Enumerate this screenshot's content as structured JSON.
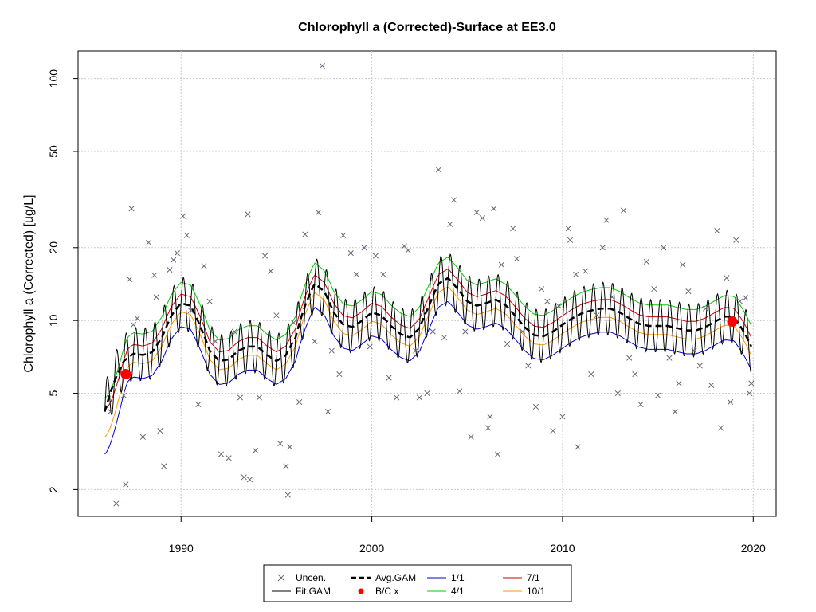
{
  "chart_data": {
    "type": "line",
    "title": "Chlorophyll a (Corrected)-Surface at EE3.0",
    "ylabel": "Chlorophyll a (Corrected) [ug/L]",
    "xlabel": "",
    "y_scale": "log",
    "xlim": [
      1984.6,
      2021.2
    ],
    "ylim": [
      1.55,
      130
    ],
    "x_ticks": [
      1990,
      2000,
      2010,
      2020
    ],
    "x_tick_labels": [
      "1990",
      "2000",
      "2010",
      "2020"
    ],
    "y_ticks": [
      2,
      5,
      10,
      20,
      50,
      100
    ],
    "y_tick_labels": [
      "2",
      "5",
      "10",
      "20",
      "50",
      "100"
    ],
    "grid": true,
    "legend_position": "bottom",
    "legend": [
      {
        "label": "Uncen.",
        "symbol": "x",
        "color": "#666677"
      },
      {
        "label": "Fit.GAM",
        "symbol": "line",
        "color": "#000000"
      },
      {
        "label": "Avg.GAM",
        "symbol": "dashed",
        "color": "#000000"
      },
      {
        "label": "B/C x",
        "symbol": "dot",
        "color": "#ff0000"
      },
      {
        "label": "1/1",
        "symbol": "line",
        "color": "#0000cc"
      },
      {
        "label": "4/1",
        "symbol": "line",
        "color": "#00cc00"
      },
      {
        "label": "7/1",
        "symbol": "line",
        "color": "#cc0000"
      },
      {
        "label": "10/1",
        "symbol": "line",
        "color": "#ff9900"
      }
    ],
    "bc_points": [
      {
        "x": 1987.1,
        "y": 6.0
      },
      {
        "x": 2018.9,
        "y": 9.9
      }
    ],
    "avg_gam": {
      "x": [
        1986.0,
        1986.5,
        1987.0,
        1987.5,
        1988.0,
        1988.5,
        1989.0,
        1989.5,
        1990.0,
        1990.5,
        1991.0,
        1991.5,
        1992.0,
        1992.5,
        1993.0,
        1993.5,
        1994.0,
        1994.5,
        1995.0,
        1995.5,
        1996.0,
        1996.5,
        1997.0,
        1997.5,
        1998.0,
        1998.5,
        1999.0,
        1999.5,
        2000.0,
        2000.5,
        2001.0,
        2001.5,
        2002.0,
        2002.5,
        2003.0,
        2003.5,
        2004.0,
        2004.5,
        2005.0,
        2005.5,
        2006.0,
        2006.5,
        2007.0,
        2007.5,
        2008.0,
        2008.5,
        2009.0,
        2009.5,
        2010.0,
        2010.5,
        2011.0,
        2011.5,
        2012.0,
        2012.5,
        2013.0,
        2013.5,
        2014.0,
        2014.5,
        2015.0,
        2015.5,
        2016.0,
        2016.5,
        2017.0,
        2017.5,
        2018.0,
        2018.5,
        2019.0,
        2019.5,
        2019.9
      ],
      "y": [
        4.2,
        5.6,
        6.8,
        7.3,
        7.2,
        7.4,
        8.5,
        10.5,
        11.8,
        11.5,
        9.5,
        7.5,
        6.8,
        6.9,
        7.5,
        7.8,
        7.8,
        7.2,
        6.8,
        7.2,
        8.5,
        11.5,
        14.2,
        13.2,
        10.8,
        9.6,
        9.4,
        10.0,
        10.8,
        10.5,
        9.5,
        8.8,
        8.5,
        9.3,
        11.5,
        14.2,
        15.0,
        13.5,
        12.0,
        11.5,
        11.8,
        12.2,
        11.6,
        10.5,
        9.4,
        8.7,
        8.6,
        9.0,
        9.6,
        10.2,
        10.7,
        11.0,
        11.2,
        11.2,
        10.8,
        10.2,
        9.7,
        9.5,
        9.5,
        9.5,
        9.3,
        9.1,
        9.1,
        9.4,
        9.9,
        10.4,
        10.3,
        9.0,
        7.8
      ]
    },
    "seasonal_curves": [
      {
        "name": "1/1",
        "color": "#0000cc",
        "factor": 0.8,
        "y0": 2.8
      },
      {
        "name": "4/1",
        "color": "#00cc00",
        "factor": 1.22,
        "y0": 4.8
      },
      {
        "name": "7/1",
        "color": "#cc0000",
        "factor": 1.09,
        "y0": 4.3
      },
      {
        "name": "10/1",
        "color": "#ff9900",
        "factor": 0.92,
        "y0": 3.3
      }
    ],
    "fit_gam": {
      "x_start": 1986.0,
      "x_end": 2019.9,
      "amplitude": 0.25
    },
    "uncensored_points": [
      [
        1986.3,
        4.2
      ],
      [
        1986.6,
        1.75
      ],
      [
        1987.0,
        4.9
      ],
      [
        1987.1,
        2.1
      ],
      [
        1987.4,
        29.0
      ],
      [
        1987.3,
        14.8
      ],
      [
        1987.5,
        9.6
      ],
      [
        1987.7,
        10.2
      ],
      [
        1988.0,
        3.3
      ],
      [
        1988.3,
        21.0
      ],
      [
        1988.6,
        15.4
      ],
      [
        1988.7,
        12.5
      ],
      [
        1988.9,
        3.5
      ],
      [
        1989.1,
        2.5
      ],
      [
        1989.4,
        16.2
      ],
      [
        1989.6,
        17.8
      ],
      [
        1989.8,
        19.0
      ],
      [
        1990.1,
        27.0
      ],
      [
        1990.3,
        22.5
      ],
      [
        1990.5,
        11.0
      ],
      [
        1990.9,
        4.5
      ],
      [
        1991.2,
        16.8
      ],
      [
        1991.5,
        12.0
      ],
      [
        1991.8,
        8.2
      ],
      [
        1992.1,
        2.8
      ],
      [
        1992.5,
        2.7
      ],
      [
        1992.8,
        9.0
      ],
      [
        1993.1,
        4.8
      ],
      [
        1993.3,
        2.25
      ],
      [
        1993.6,
        2.2
      ],
      [
        1993.5,
        27.5
      ],
      [
        1993.9,
        2.9
      ],
      [
        1994.1,
        4.8
      ],
      [
        1994.4,
        18.5
      ],
      [
        1994.7,
        16.0
      ],
      [
        1995.0,
        10.5
      ],
      [
        1995.2,
        3.1
      ],
      [
        1995.5,
        2.5
      ],
      [
        1995.6,
        1.9
      ],
      [
        1995.7,
        3.0
      ],
      [
        1995.9,
        9.8
      ],
      [
        1996.2,
        4.6
      ],
      [
        1996.5,
        22.7
      ],
      [
        1997.0,
        8.2
      ],
      [
        1997.2,
        28.0
      ],
      [
        1997.4,
        113.0
      ],
      [
        1997.7,
        4.2
      ],
      [
        1997.9,
        7.5
      ],
      [
        1998.3,
        6.0
      ],
      [
        1998.5,
        22.5
      ],
      [
        1998.9,
        19.0
      ],
      [
        1999.2,
        15.5
      ],
      [
        1999.6,
        20.0
      ],
      [
        1999.9,
        7.8
      ],
      [
        2000.2,
        18.5
      ],
      [
        2000.6,
        15.5
      ],
      [
        2000.9,
        5.8
      ],
      [
        2001.3,
        4.8
      ],
      [
        2001.7,
        20.3
      ],
      [
        2001.9,
        19.5
      ],
      [
        2002.3,
        7.5
      ],
      [
        2002.5,
        4.8
      ],
      [
        2002.9,
        5.0
      ],
      [
        2003.2,
        9.0
      ],
      [
        2003.5,
        42.0
      ],
      [
        2003.8,
        8.5
      ],
      [
        2004.1,
        25.0
      ],
      [
        2004.3,
        31.5
      ],
      [
        2004.6,
        5.1
      ],
      [
        2004.9,
        9.0
      ],
      [
        2005.2,
        3.3
      ],
      [
        2005.5,
        28.0
      ],
      [
        2005.8,
        26.5
      ],
      [
        2006.1,
        3.6
      ],
      [
        2006.2,
        4.0
      ],
      [
        2006.4,
        29.0
      ],
      [
        2006.6,
        2.8
      ],
      [
        2006.8,
        17.0
      ],
      [
        2007.1,
        8.0
      ],
      [
        2007.4,
        24.0
      ],
      [
        2007.6,
        18.0
      ],
      [
        2007.9,
        9.0
      ],
      [
        2008.2,
        6.5
      ],
      [
        2008.6,
        4.4
      ],
      [
        2008.9,
        13.5
      ],
      [
        2009.2,
        12.0
      ],
      [
        2009.5,
        3.5
      ],
      [
        2009.8,
        11.5
      ],
      [
        2010.0,
        4.0
      ],
      [
        2010.3,
        24.0
      ],
      [
        2010.4,
        21.5
      ],
      [
        2010.7,
        15.5
      ],
      [
        2010.8,
        3.0
      ],
      [
        2011.2,
        16.0
      ],
      [
        2011.5,
        6.0
      ],
      [
        2011.8,
        10.5
      ],
      [
        2012.1,
        20.0
      ],
      [
        2012.3,
        26.0
      ],
      [
        2012.6,
        12.5
      ],
      [
        2012.9,
        5.0
      ],
      [
        2013.2,
        28.5
      ],
      [
        2013.5,
        7.0
      ],
      [
        2013.8,
        6.0
      ],
      [
        2014.1,
        4.5
      ],
      [
        2014.4,
        17.5
      ],
      [
        2014.8,
        13.5
      ],
      [
        2015.0,
        4.9
      ],
      [
        2015.3,
        20.0
      ],
      [
        2015.6,
        7.0
      ],
      [
        2015.9,
        4.2
      ],
      [
        2016.1,
        5.5
      ],
      [
        2016.3,
        17.0
      ],
      [
        2016.6,
        13.2
      ],
      [
        2016.9,
        7.5
      ],
      [
        2017.2,
        6.5
      ],
      [
        2017.5,
        11.2
      ],
      [
        2017.8,
        5.4
      ],
      [
        2018.1,
        23.5
      ],
      [
        2018.3,
        3.6
      ],
      [
        2018.6,
        15.0
      ],
      [
        2018.8,
        4.6
      ],
      [
        2019.1,
        21.5
      ],
      [
        2019.3,
        12.0
      ],
      [
        2019.6,
        12.4
      ],
      [
        2019.8,
        5.0
      ],
      [
        2019.9,
        5.5
      ]
    ]
  }
}
